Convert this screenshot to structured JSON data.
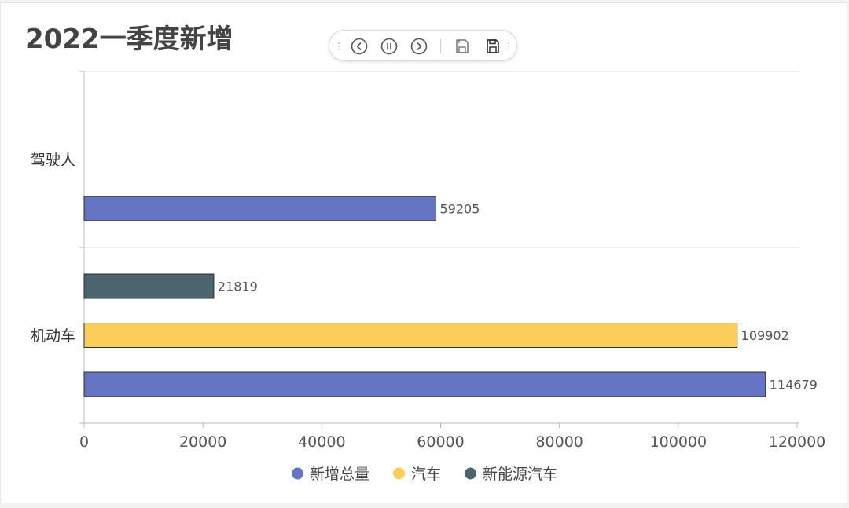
{
  "chart_data": {
    "type": "bar",
    "orientation": "horizontal",
    "title": "2022一季度新增",
    "categories": [
      "机动车",
      "驾驶人"
    ],
    "series": [
      {
        "name": "新增总量",
        "color": "#6674c4",
        "values": [
          114679,
          59205
        ]
      },
      {
        "name": "汽车",
        "color": "#fbcd5b",
        "values": [
          109902,
          null
        ]
      },
      {
        "name": "新能源汽车",
        "color": "#4b646e",
        "values": [
          21819,
          null
        ]
      }
    ],
    "xlim": [
      0,
      120000
    ],
    "xticks": [
      0,
      20000,
      40000,
      60000,
      80000,
      100000,
      120000
    ],
    "data_labels": true,
    "grid": true,
    "legend_position": "bottom"
  },
  "toolbar": {
    "icons": [
      "prev-icon",
      "pause-icon",
      "next-icon",
      "save-icon",
      "save-as-icon"
    ]
  }
}
